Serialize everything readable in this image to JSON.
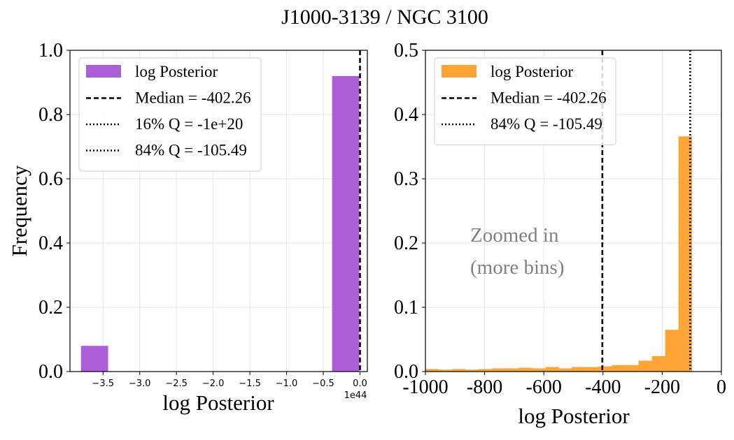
{
  "figure": {
    "suptitle": "J1000-3139 / NGC 3100"
  },
  "colors": {
    "left_bars": "#ac5dd8",
    "right_bars": "#ffa537",
    "grid": "#e6e6e6",
    "annotation": "#808080"
  },
  "chart_data": [
    {
      "type": "bar",
      "panel": "left",
      "xlabel": "log Posterior",
      "ylabel": "Frequency",
      "x_offset_label": "1e44",
      "xlim": [
        -3.95,
        0.1
      ],
      "ylim": [
        0.0,
        1.0
      ],
      "xticks": [
        -3.5,
        -3.0,
        -2.5,
        -2.0,
        -1.5,
        -1.0,
        -0.5,
        0.0
      ],
      "xtick_labels": [
        "−3.5",
        "−3.0",
        "−2.5",
        "−2.0",
        "−1.5",
        "−1.0",
        "−0.5",
        "0.0"
      ],
      "yticks": [
        0.0,
        0.2,
        0.4,
        0.6,
        0.8,
        1.0
      ],
      "ytick_labels": [
        "0.0",
        "0.2",
        "0.4",
        "0.6",
        "0.8",
        "1.0"
      ],
      "bars": [
        {
          "x0": -3.8,
          "x1": -3.43,
          "value": 0.08
        },
        {
          "x0": -0.38,
          "x1": -0.01,
          "value": 0.92
        }
      ],
      "vlines": [
        {
          "x": 0.0,
          "style": "dashed"
        }
      ],
      "legend": {
        "placement": "upper-left",
        "entries": [
          {
            "kind": "patch",
            "label": "log Posterior"
          },
          {
            "kind": "dashed",
            "label": "Median = -402.26"
          },
          {
            "kind": "dotted",
            "label": "16% Q = -1e+20"
          },
          {
            "kind": "dotted",
            "label": "84% Q = -105.49"
          }
        ]
      },
      "grid": true
    },
    {
      "type": "bar",
      "panel": "right",
      "xlabel": "log Posterior",
      "ylabel": "",
      "xlim": [
        -1000,
        0
      ],
      "ylim": [
        0.0,
        0.5
      ],
      "xticks": [
        -1000,
        -800,
        -600,
        -400,
        -200,
        0
      ],
      "xtick_labels": [
        "-1000",
        "-800",
        "-600",
        "-400",
        "-200",
        "0"
      ],
      "yticks": [
        0.0,
        0.1,
        0.2,
        0.3,
        0.4,
        0.5
      ],
      "ytick_labels": [
        "0.0",
        "0.1",
        "0.2",
        "0.3",
        "0.4",
        "0.5"
      ],
      "bin_edges": [
        -1000,
        -955,
        -910,
        -865,
        -820,
        -775,
        -730,
        -685,
        -640,
        -595,
        -550,
        -505,
        -460,
        -415,
        -370,
        -325,
        -280,
        -235,
        -190,
        -145,
        -100
      ],
      "values": [
        0.004,
        0.003,
        0.004,
        0.003,
        0.004,
        0.005,
        0.005,
        0.006,
        0.005,
        0.007,
        0.005,
        0.007,
        0.007,
        0.008,
        0.01,
        0.01,
        0.017,
        0.024,
        0.065,
        0.366
      ],
      "vlines": [
        {
          "x": -402.26,
          "style": "dashed"
        },
        {
          "x": -105.49,
          "style": "dotted"
        }
      ],
      "annotation": {
        "line1": "Zoomed in",
        "line2": "(more bins)"
      },
      "legend": {
        "placement": "upper-left",
        "entries": [
          {
            "kind": "patch",
            "label": "log Posterior"
          },
          {
            "kind": "dashed",
            "label": "Median = -402.26"
          },
          {
            "kind": "dotted",
            "label": "84% Q = -105.49"
          }
        ]
      },
      "grid": true
    }
  ]
}
